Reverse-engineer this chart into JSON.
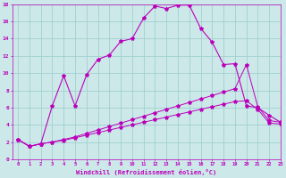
{
  "xlabel": "Windchill (Refroidissement éolien,°C)",
  "ylabel": "",
  "bg_color": "#cce8e8",
  "line_color": "#bb00bb",
  "grid_color": "#99cccc",
  "xlim": [
    -0.5,
    23
  ],
  "ylim": [
    0,
    18
  ],
  "xticks": [
    0,
    1,
    2,
    3,
    4,
    5,
    6,
    7,
    8,
    9,
    10,
    11,
    12,
    13,
    14,
    15,
    16,
    17,
    18,
    19,
    20,
    21,
    22,
    23
  ],
  "yticks": [
    0,
    2,
    4,
    6,
    8,
    10,
    12,
    14,
    16,
    18
  ],
  "series1_x": [
    0,
    1,
    2,
    3,
    4,
    5,
    6,
    7,
    8,
    9,
    10,
    11,
    12,
    13,
    14,
    15,
    16,
    17,
    18,
    19,
    20,
    21,
    22,
    23
  ],
  "series1_y": [
    2.3,
    1.5,
    1.8,
    6.2,
    9.7,
    6.2,
    9.8,
    11.6,
    12.1,
    13.7,
    14.0,
    16.4,
    17.8,
    17.5,
    17.9,
    17.9,
    15.2,
    13.6,
    11.0,
    11.1,
    6.2,
    6.0,
    5.1,
    4.3
  ],
  "series2_x": [
    0,
    1,
    2,
    3,
    4,
    5,
    6,
    7,
    8,
    9,
    10,
    11,
    12,
    13,
    14,
    15,
    16,
    17,
    18,
    19,
    20,
    21,
    22,
    23
  ],
  "series2_y": [
    2.3,
    1.5,
    1.8,
    2.0,
    2.3,
    2.6,
    3.0,
    3.4,
    3.8,
    4.2,
    4.6,
    5.0,
    5.4,
    5.8,
    6.2,
    6.6,
    7.0,
    7.4,
    7.8,
    8.2,
    11.0,
    6.1,
    4.5,
    4.3
  ],
  "series3_x": [
    0,
    1,
    2,
    3,
    4,
    5,
    6,
    7,
    8,
    9,
    10,
    11,
    12,
    13,
    14,
    15,
    16,
    17,
    18,
    19,
    20,
    21,
    22,
    23
  ],
  "series3_y": [
    2.3,
    1.5,
    1.8,
    2.0,
    2.2,
    2.5,
    2.8,
    3.1,
    3.4,
    3.7,
    4.0,
    4.3,
    4.6,
    4.9,
    5.2,
    5.5,
    5.8,
    6.1,
    6.4,
    6.7,
    6.8,
    5.8,
    4.2,
    4.1
  ],
  "marker": "*",
  "markersize": 3,
  "lw1": 0.8,
  "lw2": 0.7,
  "lw3": 0.7
}
